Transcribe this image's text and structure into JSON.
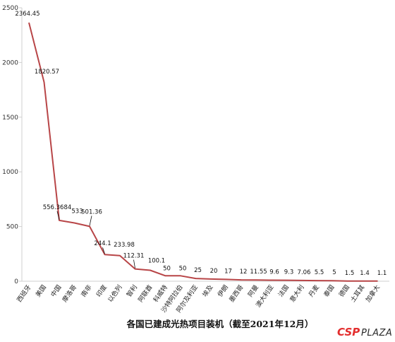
{
  "chart_data": {
    "type": "line",
    "title": "各国已建成光热项目装机（截至2021年12月）",
    "xlabel": "",
    "ylabel": "",
    "ylim": [
      0,
      2500
    ],
    "yticks": [
      0,
      500,
      1000,
      1500,
      2000,
      2500
    ],
    "grid": false,
    "legend": "none",
    "line_color": "#b84547",
    "categories": [
      "西班牙",
      "美国",
      "中国",
      "摩洛哥",
      "南非",
      "印度",
      "以色列",
      "智利",
      "阿联酋",
      "科威特",
      "沙特阿拉伯",
      "阿尔及利亚",
      "埃及",
      "伊朗",
      "墨西哥",
      "阿曼",
      "澳大利亚",
      "法国",
      "意大利",
      "丹麦",
      "泰国",
      "德国",
      "土耳其",
      "加拿大"
    ],
    "values": [
      2364.45,
      1820.57,
      556.3684,
      533,
      501.36,
      244.1,
      233.98,
      112.31,
      100.1,
      50,
      50,
      25,
      20,
      17,
      12,
      11.55,
      9.6,
      9.3,
      7.06,
      5.5,
      5,
      1.5,
      1.4,
      1.1
    ],
    "value_labels": [
      "2364.45",
      "1820.57",
      "556.3684",
      "533",
      "501.36",
      "244.1",
      "233.98",
      "112.31",
      "100.1",
      "50",
      "50",
      "25",
      "20",
      "17",
      "12",
      "11.55",
      "9.6",
      "9.3",
      "7.06",
      "5.5",
      "5",
      "1.5",
      "1.4",
      "1.1"
    ]
  },
  "watermark": {
    "csp": "CSP",
    "plaza": "PLAZA",
    "csp_color": "#e32e2e"
  }
}
